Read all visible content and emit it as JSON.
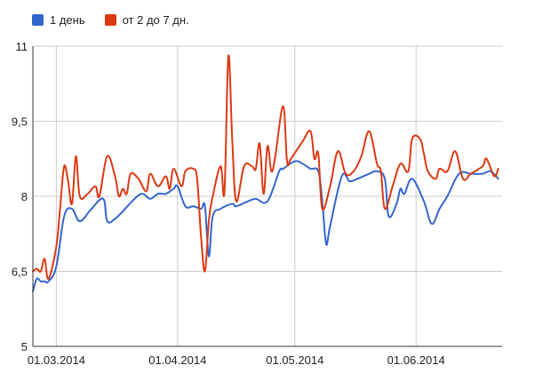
{
  "chart_data": {
    "type": "line",
    "legend_position": "top-left",
    "grid": true,
    "x_start": "2014-02-23",
    "x_end": "2014-06-23",
    "y_ticks": [
      "5",
      "6,5",
      "8",
      "9,5",
      "11"
    ],
    "ylim": [
      5,
      11
    ],
    "x_ticks": [
      {
        "date": "2014-03-01",
        "label": "01.03.2014"
      },
      {
        "date": "2014-04-01",
        "label": "01.04.2014"
      },
      {
        "date": "2014-05-01",
        "label": "01.05.2014"
      },
      {
        "date": "2014-06-01",
        "label": "01.06.2014"
      }
    ],
    "x_extra_gridlines": [
      "2014-02-23"
    ],
    "series": [
      {
        "name": "1 день",
        "color": "#3366cc",
        "points": [
          [
            "2014-02-23",
            6.1
          ],
          [
            "2014-02-24",
            6.35
          ],
          [
            "2014-02-25",
            6.3
          ],
          [
            "2014-02-26",
            6.3
          ],
          [
            "2014-02-27",
            6.3
          ],
          [
            "2014-03-01",
            6.6
          ],
          [
            "2014-03-03",
            7.6
          ],
          [
            "2014-03-05",
            7.75
          ],
          [
            "2014-03-07",
            7.5
          ],
          [
            "2014-03-10",
            7.75
          ],
          [
            "2014-03-13",
            7.95
          ],
          [
            "2014-03-14",
            7.5
          ],
          [
            "2014-03-16",
            7.55
          ],
          [
            "2014-03-18",
            7.7
          ],
          [
            "2014-03-21",
            7.95
          ],
          [
            "2014-03-23",
            8.05
          ],
          [
            "2014-03-25",
            7.95
          ],
          [
            "2014-03-27",
            8.05
          ],
          [
            "2014-03-29",
            8.05
          ],
          [
            "2014-03-31",
            8.15
          ],
          [
            "2014-04-01",
            8.2
          ],
          [
            "2014-04-03",
            7.8
          ],
          [
            "2014-04-05",
            7.8
          ],
          [
            "2014-04-07",
            7.75
          ],
          [
            "2014-04-08",
            7.8
          ],
          [
            "2014-04-09",
            6.8
          ],
          [
            "2014-04-10",
            7.6
          ],
          [
            "2014-04-12",
            7.75
          ],
          [
            "2014-04-15",
            7.85
          ],
          [
            "2014-04-16",
            7.8
          ],
          [
            "2014-04-19",
            7.9
          ],
          [
            "2014-04-21",
            7.95
          ],
          [
            "2014-04-24",
            7.9
          ],
          [
            "2014-04-27",
            8.5
          ],
          [
            "2014-04-28",
            8.55
          ],
          [
            "2014-05-01",
            8.7
          ],
          [
            "2014-05-03",
            8.65
          ],
          [
            "2014-05-05",
            8.55
          ],
          [
            "2014-05-07",
            8.5
          ],
          [
            "2014-05-08",
            7.9
          ],
          [
            "2014-05-09",
            7.05
          ],
          [
            "2014-05-10",
            7.4
          ],
          [
            "2014-05-13",
            8.4
          ],
          [
            "2014-05-15",
            8.3
          ],
          [
            "2014-05-17",
            8.35
          ],
          [
            "2014-05-20",
            8.45
          ],
          [
            "2014-05-22",
            8.5
          ],
          [
            "2014-05-24",
            8.35
          ],
          [
            "2014-05-25",
            7.6
          ],
          [
            "2014-05-27",
            7.85
          ],
          [
            "2014-05-28",
            8.15
          ],
          [
            "2014-05-29",
            8.05
          ],
          [
            "2014-05-31",
            8.35
          ],
          [
            "2014-06-03",
            7.9
          ],
          [
            "2014-06-05",
            7.45
          ],
          [
            "2014-06-07",
            7.75
          ],
          [
            "2014-06-09",
            8.0
          ],
          [
            "2014-06-12",
            8.45
          ],
          [
            "2014-06-15",
            8.45
          ],
          [
            "2014-06-18",
            8.45
          ],
          [
            "2014-06-20",
            8.5
          ],
          [
            "2014-06-22",
            8.35
          ]
        ]
      },
      {
        "name": "от 2 до 7 дн.",
        "color": "#dc3912",
        "points": [
          [
            "2014-02-23",
            6.5
          ],
          [
            "2014-02-24",
            6.55
          ],
          [
            "2014-02-25",
            6.5
          ],
          [
            "2014-02-26",
            6.75
          ],
          [
            "2014-02-27",
            6.35
          ],
          [
            "2014-03-01",
            7.0
          ],
          [
            "2014-03-02",
            7.8
          ],
          [
            "2014-03-03",
            8.6
          ],
          [
            "2014-03-04",
            8.3
          ],
          [
            "2014-03-05",
            7.85
          ],
          [
            "2014-03-06",
            8.8
          ],
          [
            "2014-03-07",
            8.0
          ],
          [
            "2014-03-09",
            8.05
          ],
          [
            "2014-03-11",
            8.2
          ],
          [
            "2014-03-12",
            8.0
          ],
          [
            "2014-03-14",
            8.8
          ],
          [
            "2014-03-16",
            8.4
          ],
          [
            "2014-03-17",
            8.0
          ],
          [
            "2014-03-18",
            8.15
          ],
          [
            "2014-03-19",
            8.05
          ],
          [
            "2014-03-20",
            8.45
          ],
          [
            "2014-03-22",
            8.35
          ],
          [
            "2014-03-24",
            8.1
          ],
          [
            "2014-03-25",
            8.45
          ],
          [
            "2014-03-27",
            8.2
          ],
          [
            "2014-03-29",
            8.4
          ],
          [
            "2014-03-30",
            8.15
          ],
          [
            "2014-03-31",
            8.55
          ],
          [
            "2014-04-02",
            8.2
          ],
          [
            "2014-04-03",
            8.5
          ],
          [
            "2014-04-05",
            8.55
          ],
          [
            "2014-04-06",
            8.35
          ],
          [
            "2014-04-07",
            7.2
          ],
          [
            "2014-04-08",
            6.5
          ],
          [
            "2014-04-09",
            7.5
          ],
          [
            "2014-04-10",
            8.0
          ],
          [
            "2014-04-12",
            8.6
          ],
          [
            "2014-04-13",
            8.1
          ],
          [
            "2014-04-14",
            10.8
          ],
          [
            "2014-04-15",
            9.1
          ],
          [
            "2014-04-16",
            7.9
          ],
          [
            "2014-04-18",
            8.6
          ],
          [
            "2014-04-20",
            8.6
          ],
          [
            "2014-04-21",
            8.55
          ],
          [
            "2014-04-22",
            9.05
          ],
          [
            "2014-04-23",
            8.05
          ],
          [
            "2014-04-24",
            9.0
          ],
          [
            "2014-04-25",
            8.5
          ],
          [
            "2014-04-26",
            8.8
          ],
          [
            "2014-04-28",
            9.8
          ],
          [
            "2014-04-29",
            8.7
          ],
          [
            "2014-04-30",
            8.75
          ],
          [
            "2014-05-03",
            9.1
          ],
          [
            "2014-05-05",
            9.3
          ],
          [
            "2014-05-06",
            8.75
          ],
          [
            "2014-05-07",
            8.85
          ],
          [
            "2014-05-08",
            7.75
          ],
          [
            "2014-05-10",
            8.2
          ],
          [
            "2014-05-12",
            8.9
          ],
          [
            "2014-05-14",
            8.45
          ],
          [
            "2014-05-16",
            8.5
          ],
          [
            "2014-05-18",
            8.8
          ],
          [
            "2014-05-20",
            9.3
          ],
          [
            "2014-05-22",
            8.65
          ],
          [
            "2014-05-23",
            8.5
          ],
          [
            "2014-05-24",
            7.75
          ],
          [
            "2014-05-26",
            8.2
          ],
          [
            "2014-05-28",
            8.65
          ],
          [
            "2014-05-30",
            8.5
          ],
          [
            "2014-05-31",
            9.15
          ],
          [
            "2014-06-02",
            9.15
          ],
          [
            "2014-06-03",
            8.85
          ],
          [
            "2014-06-04",
            8.5
          ],
          [
            "2014-06-06",
            8.35
          ],
          [
            "2014-06-07",
            8.55
          ],
          [
            "2014-06-09",
            8.5
          ],
          [
            "2014-06-11",
            8.9
          ],
          [
            "2014-06-13",
            8.35
          ],
          [
            "2014-06-15",
            8.45
          ],
          [
            "2014-06-18",
            8.6
          ],
          [
            "2014-06-19",
            8.75
          ],
          [
            "2014-06-21",
            8.4
          ],
          [
            "2014-06-22",
            8.55
          ]
        ]
      }
    ]
  }
}
